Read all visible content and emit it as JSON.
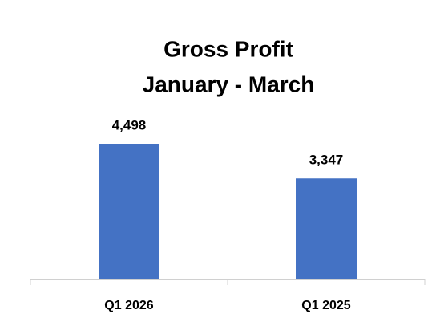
{
  "chart_data": {
    "type": "bar",
    "title": "Gross Profit",
    "subtitle": "January - March",
    "categories": [
      "Q1 2026",
      "Q1 2025"
    ],
    "values": [
      4498,
      3347
    ],
    "value_labels": [
      "4,498",
      "3,347"
    ],
    "color": "#4472c4",
    "grid": false
  }
}
